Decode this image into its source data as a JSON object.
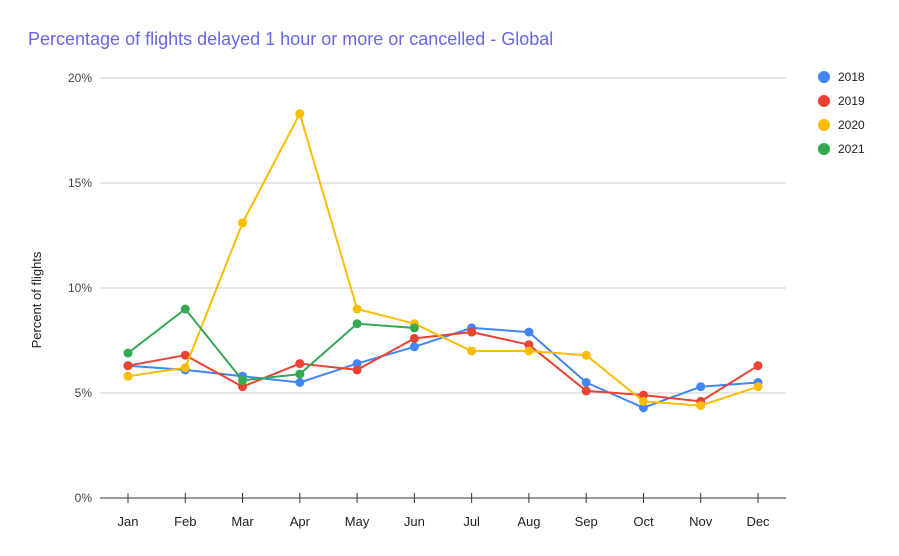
{
  "chart_data": {
    "type": "line",
    "title": "Percentage of flights delayed 1 hour or more or cancelled - Global",
    "xlabel": "",
    "ylabel": "Percent of flights",
    "ylim": [
      0,
      20
    ],
    "yticks": [
      "0%",
      "5%",
      "10%",
      "15%",
      "20%"
    ],
    "grid": true,
    "legend_position": "right",
    "categories": [
      "Jan",
      "Feb",
      "Mar",
      "Apr",
      "May",
      "Jun",
      "Jul",
      "Aug",
      "Sep",
      "Oct",
      "Nov",
      "Dec"
    ],
    "series": [
      {
        "name": "2018",
        "color": "#4285f4",
        "values": [
          6.3,
          6.1,
          5.8,
          5.5,
          6.4,
          7.2,
          8.1,
          7.9,
          5.5,
          4.3,
          5.3,
          5.5
        ]
      },
      {
        "name": "2019",
        "color": "#ea4335",
        "values": [
          6.3,
          6.8,
          5.3,
          6.4,
          6.1,
          7.6,
          7.9,
          7.3,
          5.1,
          4.9,
          4.6,
          6.3
        ]
      },
      {
        "name": "2020",
        "color": "#fbbc04",
        "values": [
          5.8,
          6.2,
          13.1,
          18.3,
          9.0,
          8.3,
          7.0,
          7.0,
          6.8,
          4.6,
          4.4,
          5.3
        ]
      },
      {
        "name": "2021",
        "color": "#34a853",
        "values": [
          6.9,
          9.0,
          5.6,
          5.9,
          8.3,
          8.1,
          null,
          null,
          null,
          null,
          null,
          null
        ]
      }
    ]
  }
}
